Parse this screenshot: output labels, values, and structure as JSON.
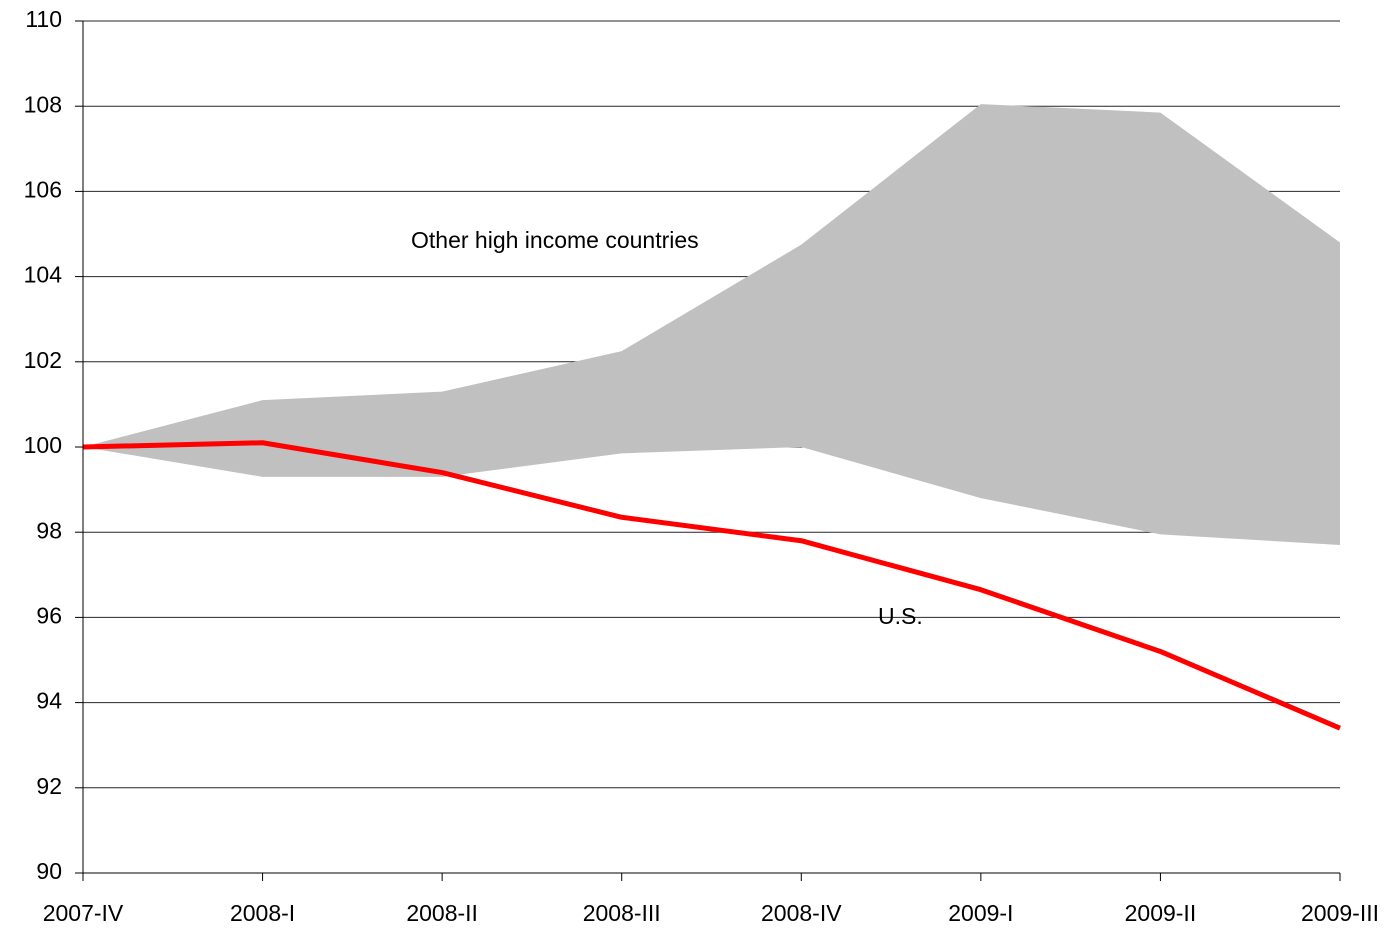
{
  "chart_data": {
    "type": "line",
    "categories": [
      "2007-IV",
      "2008-I",
      "2008-II",
      "2008-III",
      "2008-IV",
      "2009-I",
      "2009-II",
      "2009-III"
    ],
    "series": [
      {
        "name": "Other high income countries",
        "color": "#c0c0c0",
        "high": [
          100,
          101.1,
          101.3,
          102.25,
          104.75,
          108.05,
          107.85,
          104.8
        ],
        "low": [
          100,
          99.3,
          99.3,
          99.85,
          100.0,
          98.8,
          97.95,
          97.7
        ]
      },
      {
        "name": "U.S.",
        "color": "#ff0000",
        "values": [
          100,
          100.1,
          99.4,
          98.35,
          97.8,
          96.65,
          95.2,
          93.4
        ]
      }
    ],
    "ylim": [
      90,
      110
    ],
    "yticks": [
      90,
      92,
      94,
      96,
      98,
      100,
      102,
      104,
      106,
      108,
      110
    ],
    "grid": true
  }
}
